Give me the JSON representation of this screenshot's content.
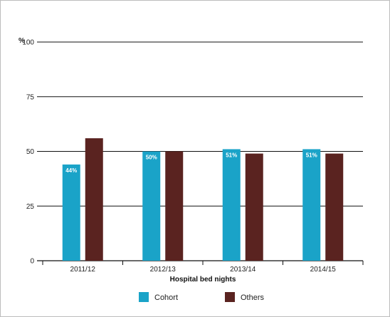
{
  "chart_data": {
    "type": "bar",
    "title": "",
    "unit_label": "%",
    "xlabel": "Hospital bed nights",
    "ylabel": "",
    "ylim": [
      0,
      100
    ],
    "yticks": [
      0,
      25,
      50,
      75,
      100
    ],
    "grid": true,
    "legend_position": "bottom",
    "categories": [
      "2011/12",
      "2012/13",
      "2013/14",
      "2014/15"
    ],
    "series": [
      {
        "name": "Cohort",
        "color": "#1aa3c8",
        "values": [
          44,
          50,
          51,
          51
        ],
        "labels": [
          "44%",
          "50%",
          "51%",
          "51%"
        ]
      },
      {
        "name": "Others",
        "color": "#5a2320",
        "values": [
          56,
          50,
          49,
          49
        ],
        "labels": []
      }
    ]
  }
}
